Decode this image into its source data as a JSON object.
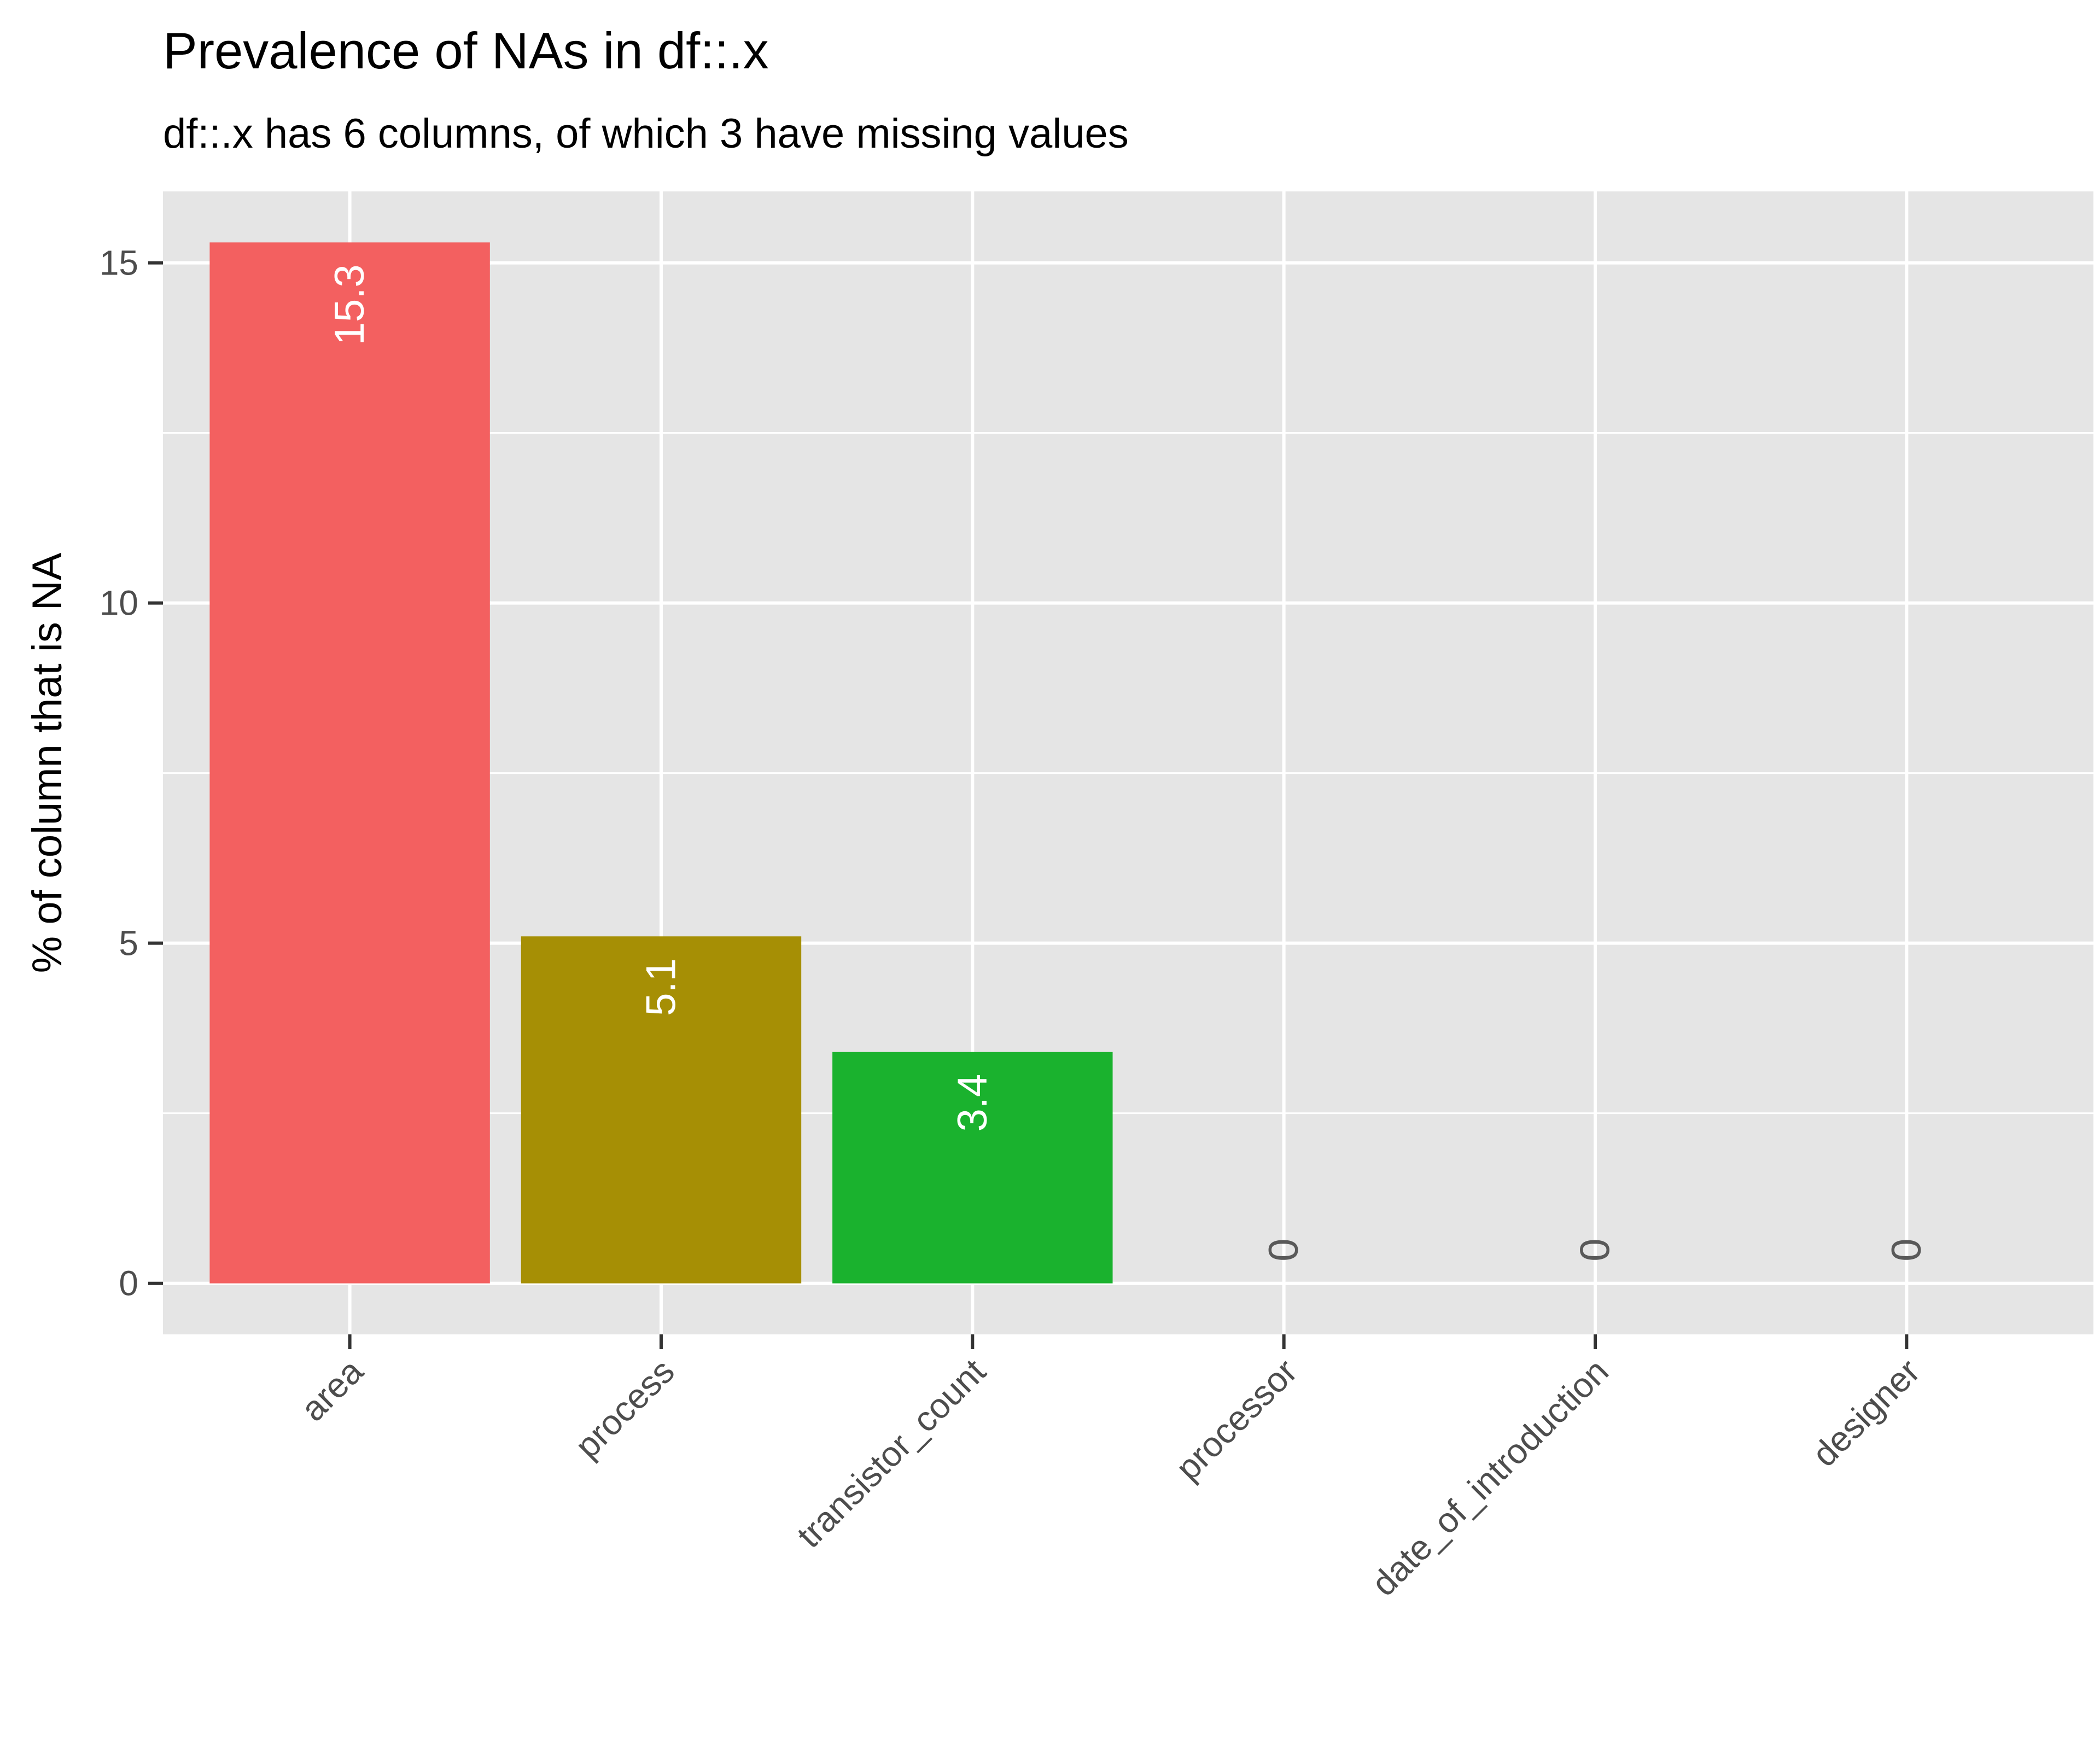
{
  "chart_data": {
    "type": "bar",
    "title": "Prevalence of NAs in df::.x",
    "subtitle": "df::.x has 6 columns, of which 3 have missing values",
    "xlabel": "",
    "ylabel": "% of column that is NA",
    "categories": [
      "area",
      "process",
      "transistor_count",
      "processor",
      "date_of_introduction",
      "designer"
    ],
    "values": [
      15.3,
      5.1,
      3.4,
      0,
      0,
      0
    ],
    "value_labels": [
      "15.3",
      "5.1",
      "3.4",
      "0",
      "0",
      "0"
    ],
    "colors": [
      "#F36060",
      "#A68F05",
      "#1AB22E",
      "#00BFC4",
      "#619CFF",
      "#F564E3"
    ],
    "ylim": [
      -0.75,
      16.05
    ],
    "y_ticks": [
      0,
      5,
      10,
      15
    ],
    "y_tick_labels": [
      "0",
      "5",
      "10",
      "15"
    ],
    "y_minor_ticks": [
      2.5,
      7.5,
      12.5
    ],
    "grid": true,
    "legend": "none",
    "panel_color": "#E5E5E5",
    "grid_color": "#FFFFFF",
    "label_color_inside": "#FFFFFF",
    "label_color_zero": "#595959"
  }
}
